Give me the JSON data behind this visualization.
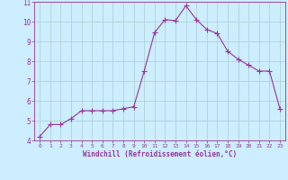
{
  "x": [
    0,
    1,
    2,
    3,
    4,
    5,
    6,
    7,
    8,
    9,
    10,
    11,
    12,
    13,
    14,
    15,
    16,
    17,
    18,
    19,
    20,
    21,
    22,
    23
  ],
  "y": [
    4.2,
    4.8,
    4.8,
    5.1,
    5.5,
    5.5,
    5.5,
    5.5,
    5.6,
    5.7,
    7.5,
    9.45,
    10.1,
    10.05,
    10.8,
    10.1,
    9.6,
    9.4,
    8.5,
    8.1,
    7.8,
    7.5,
    7.5,
    5.6
  ],
  "line_color": "#993399",
  "marker": "+",
  "marker_size": 4,
  "background_color": "#cceeff",
  "grid_color": "#aacccc",
  "xlabel": "Windchill (Refroidissement éolien,°C)",
  "xlabel_color": "#993399",
  "tick_color": "#993399",
  "ylim": [
    4,
    11
  ],
  "xlim_min": -0.5,
  "xlim_max": 23.5,
  "yticks": [
    4,
    5,
    6,
    7,
    8,
    9,
    10,
    11
  ],
  "xticks": [
    0,
    1,
    2,
    3,
    4,
    5,
    6,
    7,
    8,
    9,
    10,
    11,
    12,
    13,
    14,
    15,
    16,
    17,
    18,
    19,
    20,
    21,
    22,
    23
  ]
}
